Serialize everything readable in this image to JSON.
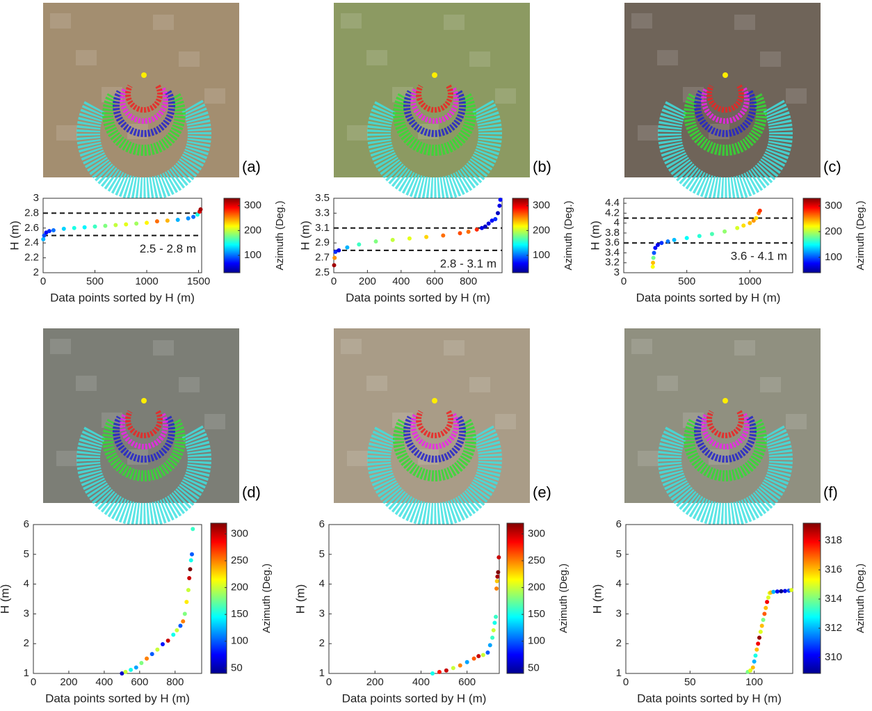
{
  "chart_data": [
    {
      "type": "scatter",
      "panel_label": "(a)",
      "xlabel": "Data points sorted by H (m)",
      "ylabel": "H (m)",
      "colorbar_label": "Azimuth (Deg.)",
      "colormap": "jet",
      "xlim": [
        0,
        1530
      ],
      "xticks": [
        0,
        500,
        1000,
        1500
      ],
      "ylim": [
        2,
        3
      ],
      "yticks": [
        2,
        2.2,
        2.4,
        2.6,
        2.8,
        3
      ],
      "clim": [
        30,
        330
      ],
      "cticks": [
        100,
        200,
        300
      ],
      "hlines": [
        2.5,
        2.8
      ],
      "annotation": "2.5 - 2.8 m",
      "x": [
        2,
        10,
        30,
        60,
        100,
        200,
        300,
        400,
        500,
        600,
        700,
        800,
        900,
        1000,
        1100,
        1200,
        1300,
        1400,
        1450,
        1490,
        1510,
        1520
      ],
      "values": [
        2.45,
        2.5,
        2.54,
        2.56,
        2.57,
        2.59,
        2.6,
        2.61,
        2.62,
        2.63,
        2.64,
        2.65,
        2.66,
        2.67,
        2.69,
        2.7,
        2.71,
        2.73,
        2.75,
        2.78,
        2.82,
        2.85
      ],
      "color_values": [
        120,
        90,
        70,
        80,
        100,
        130,
        150,
        140,
        160,
        180,
        200,
        210,
        190,
        220,
        260,
        240,
        120,
        110,
        100,
        150,
        300,
        320
      ]
    },
    {
      "type": "scatter",
      "panel_label": "(b)",
      "xlabel": "Data points sorted by H (m)",
      "ylabel": "H (m)",
      "colorbar_label": "Azimuth (Deg.)",
      "colormap": "jet",
      "xlim": [
        0,
        1000
      ],
      "xticks": [
        0,
        200,
        400,
        600,
        800
      ],
      "ylim": [
        2.5,
        3.5
      ],
      "yticks": [
        2.5,
        2.7,
        2.9,
        3.1,
        3.3,
        3.5
      ],
      "clim": [
        30,
        330
      ],
      "cticks": [
        100,
        200,
        300
      ],
      "hlines": [
        2.8,
        3.1
      ],
      "annotation": "2.8 - 3.1 m",
      "x": [
        2,
        5,
        10,
        30,
        80,
        150,
        250,
        350,
        450,
        550,
        650,
        750,
        800,
        850,
        880,
        900,
        920,
        940,
        960,
        975,
        985,
        990
      ],
      "values": [
        2.6,
        2.7,
        2.78,
        2.8,
        2.84,
        2.88,
        2.92,
        2.94,
        2.96,
        2.98,
        3.0,
        3.03,
        3.05,
        3.08,
        3.1,
        3.12,
        3.16,
        3.2,
        3.22,
        3.3,
        3.4,
        3.48
      ],
      "color_values": [
        320,
        250,
        80,
        60,
        120,
        160,
        180,
        200,
        210,
        230,
        260,
        270,
        260,
        280,
        60,
        50,
        60,
        70,
        80,
        50,
        60,
        70
      ]
    },
    {
      "type": "scatter",
      "panel_label": "(c)",
      "xlabel": "Data points sorted by H (m)",
      "ylabel": "H (m)",
      "colorbar_label": "Azimuth (Deg.)",
      "colormap": "jet",
      "xlim": [
        0,
        1340
      ],
      "xticks": [
        0,
        500,
        1000
      ],
      "ylim": [
        3,
        4.5
      ],
      "yticks": [
        3,
        3.2,
        3.4,
        3.6,
        3.8,
        4,
        4.2,
        4.4
      ],
      "clim": [
        40,
        330
      ],
      "cticks": [
        100,
        200,
        300
      ],
      "hlines": [
        3.6,
        4.1
      ],
      "annotation": "3.6 - 4.1 m",
      "x": [
        230,
        232,
        235,
        240,
        250,
        270,
        300,
        350,
        400,
        500,
        600,
        700,
        800,
        900,
        950,
        1000,
        1030,
        1050,
        1070,
        1080
      ],
      "values": [
        3.12,
        3.2,
        3.3,
        3.4,
        3.5,
        3.56,
        3.6,
        3.63,
        3.66,
        3.7,
        3.74,
        3.78,
        3.83,
        3.9,
        3.95,
        4.0,
        4.05,
        4.1,
        4.2,
        4.25
      ],
      "color_values": [
        220,
        240,
        180,
        100,
        80,
        70,
        90,
        110,
        130,
        150,
        160,
        170,
        190,
        210,
        230,
        240,
        250,
        230,
        260,
        280
      ]
    },
    {
      "type": "scatter",
      "panel_label": "(d)",
      "xlabel": "Data points sorted by H (m)",
      "ylabel": "H (m)",
      "colorbar_label": "Azimuth (Deg.)",
      "colormap": "jet",
      "xlim": [
        0,
        950
      ],
      "xticks": [
        0,
        200,
        400,
        600,
        800
      ],
      "ylim": [
        1,
        6
      ],
      "yticks": [
        1,
        2,
        3,
        4,
        5,
        6
      ],
      "clim": [
        40,
        320
      ],
      "cticks": [
        50,
        100,
        150,
        200,
        250,
        300
      ],
      "x": [
        500,
        520,
        550,
        580,
        610,
        640,
        670,
        700,
        730,
        760,
        790,
        810,
        830,
        845,
        855,
        865,
        875,
        880,
        885,
        890,
        895,
        900
      ],
      "values": [
        1.0,
        1.05,
        1.12,
        1.2,
        1.35,
        1.5,
        1.65,
        1.8,
        1.98,
        2.1,
        2.3,
        2.45,
        2.6,
        2.75,
        3.0,
        3.4,
        3.8,
        4.2,
        4.5,
        4.8,
        5.0,
        5.85
      ],
      "color_values": [
        60,
        200,
        150,
        120,
        180,
        250,
        100,
        200,
        80,
        300,
        150,
        200,
        100,
        250,
        180,
        220,
        200,
        300,
        320,
        150,
        100,
        160
      ]
    },
    {
      "type": "scatter",
      "panel_label": "(e)",
      "xlabel": "Data points sorted by H (m)",
      "ylabel": "H (m)",
      "colorbar_label": "Azimuth (Deg.)",
      "colormap": "jet",
      "xlim": [
        0,
        740
      ],
      "xticks": [
        0,
        200,
        400,
        600
      ],
      "ylim": [
        1,
        6
      ],
      "yticks": [
        1,
        2,
        3,
        4,
        5,
        6
      ],
      "clim": [
        40,
        320
      ],
      "cticks": [
        50,
        100,
        150,
        200,
        250,
        300
      ],
      "x": [
        450,
        480,
        510,
        540,
        570,
        600,
        630,
        650,
        670,
        690,
        700,
        710,
        715,
        720,
        725,
        728,
        730,
        732,
        735,
        738
      ],
      "values": [
        1.0,
        1.05,
        1.1,
        1.18,
        1.27,
        1.38,
        1.5,
        1.58,
        1.62,
        1.7,
        1.95,
        2.2,
        2.45,
        2.7,
        2.9,
        3.85,
        4.1,
        4.25,
        4.4,
        4.9
      ],
      "color_values": [
        150,
        280,
        300,
        200,
        250,
        120,
        260,
        300,
        200,
        100,
        120,
        160,
        200,
        150,
        160,
        250,
        230,
        310,
        320,
        300
      ]
    },
    {
      "type": "scatter",
      "panel_label": "(f)",
      "xlabel": "Data points sorted by H (m)",
      "ylabel": "H (m)",
      "colorbar_label": "Azimuth (Deg.)",
      "colormap": "jet",
      "xlim": [
        0,
        130
      ],
      "xticks": [
        0,
        50,
        100
      ],
      "ylim": [
        1,
        6
      ],
      "yticks": [
        1,
        2,
        3,
        4,
        5,
        6
      ],
      "clim": [
        308.9,
        319.2
      ],
      "cticks": [
        310,
        312,
        314,
        316,
        318
      ],
      "x": [
        95,
        97,
        99,
        100,
        101,
        102,
        103,
        104,
        105,
        106,
        107,
        108,
        109,
        110,
        111,
        112,
        113,
        115,
        118,
        121,
        124,
        127,
        129
      ],
      "values": [
        1.05,
        1.1,
        1.2,
        1.4,
        1.6,
        1.8,
        2.0,
        2.2,
        2.4,
        2.6,
        2.8,
        3.0,
        3.2,
        3.4,
        3.55,
        3.7,
        3.72,
        3.74,
        3.75,
        3.76,
        3.77,
        3.78,
        3.8
      ],
      "color_values": [
        314,
        315,
        316,
        312,
        313,
        316,
        318,
        319,
        315,
        316,
        314,
        317,
        316,
        318,
        315,
        315,
        316,
        312,
        310,
        309,
        310,
        311,
        315
      ]
    }
  ]
}
